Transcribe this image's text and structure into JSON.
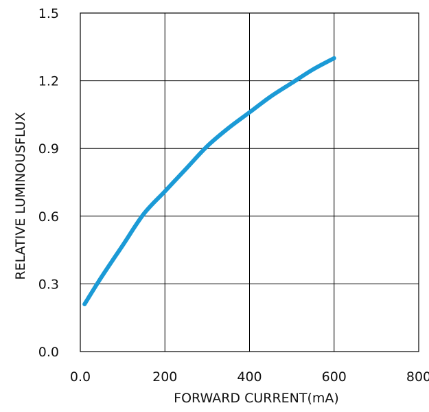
{
  "chart_data": {
    "type": "line",
    "title": "",
    "xlabel": "FORWARD CURRENT(mA)",
    "ylabel": "RELATIVE LUMINOUSFLUX",
    "xlim": [
      0,
      800
    ],
    "ylim": [
      0,
      1.5
    ],
    "x_ticks": [
      0,
      200,
      400,
      600,
      800
    ],
    "y_ticks": [
      0,
      0.3,
      0.6,
      0.9,
      1.2,
      1.5
    ],
    "x_tick_labels": [
      "0.0",
      "200",
      "400",
      "600",
      "800"
    ],
    "y_tick_labels": [
      "0.0",
      "0.3",
      "0.6",
      "0.9",
      "1.2",
      "1.5"
    ],
    "grid": true,
    "legend": "none",
    "series": [
      {
        "color": "#1b9ad6",
        "x": [
          10,
          50,
          100,
          150,
          200,
          250,
          300,
          350,
          400,
          450,
          500,
          550,
          600
        ],
        "y": [
          0.21,
          0.33,
          0.47,
          0.61,
          0.71,
          0.81,
          0.91,
          0.99,
          1.06,
          1.13,
          1.19,
          1.25,
          1.3
        ]
      }
    ]
  }
}
